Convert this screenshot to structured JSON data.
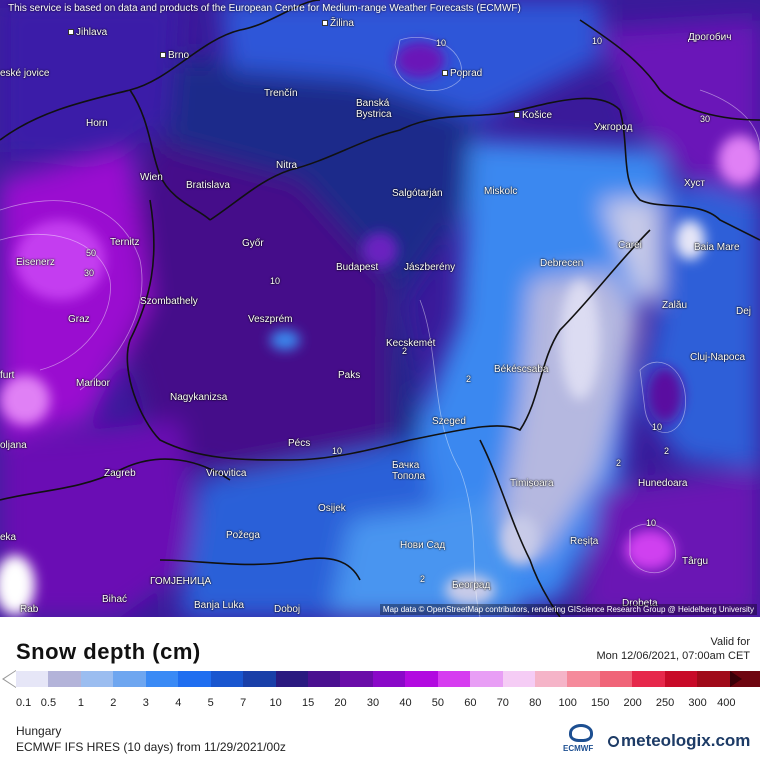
{
  "notice": "This service is based on data and products of the European Centre for Medium-range Weather Forecasts (ECMWF)",
  "attribution": "Map data © OpenStreetMap contributors, rendering GIScience Research Group @ Heidelberg University",
  "legend": {
    "title": "Snow depth (cm)",
    "valid_label": "Valid for",
    "valid_time": "Mon 12/06/2021, 07:00am CET",
    "ticks": [
      "0.1",
      "0.5",
      "1",
      "2",
      "3",
      "4",
      "5",
      "7",
      "10",
      "15",
      "20",
      "30",
      "40",
      "50",
      "60",
      "70",
      "80",
      "100",
      "150",
      "200",
      "250",
      "300",
      "400"
    ],
    "colors": [
      "#e6e6f7",
      "#b3b3d9",
      "#9bbdf0",
      "#6ea6f0",
      "#3a8af5",
      "#1f6ef0",
      "#1956cf",
      "#193fa8",
      "#2a1a80",
      "#4a1090",
      "#6a0ca8",
      "#8a08c8",
      "#b20ae0",
      "#d63cf0",
      "#e89ef5",
      "#f5ccf5",
      "#f5b4c8",
      "#f58a9b",
      "#f06478",
      "#e6284b",
      "#c80a28",
      "#a00a19",
      "#6e0510"
    ]
  },
  "footer": {
    "region": "Hungary",
    "model": "ECMWF IFS HRES (10 days) from 11/29/2021/00z",
    "ecmwf_logo": "ECMWF",
    "meteologix_logo": "meteologix.com"
  },
  "map": {
    "cities": [
      "Jihlava",
      "Brno",
      "Žilina",
      "Poprad",
      "Дрогобич",
      "eské jovice",
      "Trenčín",
      "Banská Bystrica",
      "Košice",
      "Ужгород",
      "Horn",
      "Nitra",
      "Хуст",
      "Wien",
      "Bratislava",
      "Salgótarján",
      "Miskolc",
      "Ternitz",
      "Győr",
      "Budapest",
      "Jászberény",
      "Debrecen",
      "Carei",
      "Baia Mare",
      "Eisenerz",
      "Szombathely",
      "Zalău",
      "Dej",
      "Graz",
      "Veszprém",
      "Kecskemét",
      "Cluj-Napoca",
      "furt",
      "Maribor",
      "Paks",
      "Békéscsaba",
      "Nagykanizsa",
      "Szeged",
      "oljana",
      "Pécs",
      "Бачка Топола",
      "Zagreb",
      "Virovitica",
      "Timișoara",
      "Hunedoara",
      "Osijek",
      "eka",
      "Požega",
      "Нови Сад",
      "Reșița",
      "Târgu",
      "ГОМЈЕНИЦА",
      "Bihać",
      "Banja Luka",
      "Doboj",
      "Београд",
      "Drobeta",
      "Rab"
    ],
    "contour_labels": [
      "10",
      "10",
      "10",
      "30",
      "50",
      "30",
      "10",
      "10",
      "10",
      "2",
      "2",
      "2",
      "2",
      "2"
    ]
  }
}
